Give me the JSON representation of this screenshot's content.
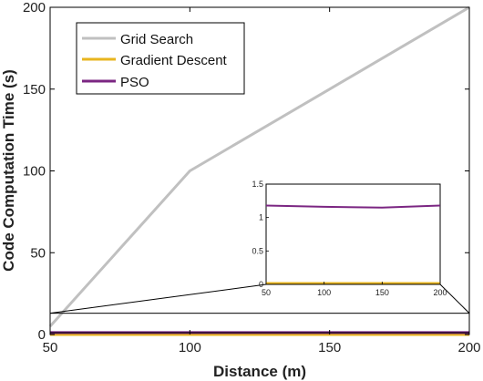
{
  "chart_data": {
    "type": "line",
    "xlabel": "Distance (m)",
    "ylabel": "Code Computation Time (s)",
    "xlim": [
      50,
      200
    ],
    "ylim": [
      0,
      200
    ],
    "x_ticks": [
      "50",
      "100",
      "150",
      "200"
    ],
    "y_ticks": [
      "0",
      "50",
      "100",
      "150",
      "200"
    ],
    "legend_position": "top-left",
    "series": [
      {
        "name": "Grid Search",
        "color": "#c0c0c0",
        "x": [
          50,
          100,
          150,
          200
        ],
        "y": [
          5,
          100,
          150,
          200
        ]
      },
      {
        "name": "Gradient Descent",
        "color": "#e8b51f",
        "x": [
          50,
          100,
          150,
          200
        ],
        "y": [
          0.02,
          0.02,
          0.02,
          0.02
        ]
      },
      {
        "name": "PSO",
        "color": "#7b2682",
        "x": [
          50,
          100,
          150,
          200
        ],
        "y": [
          1.18,
          1.16,
          1.15,
          1.18
        ]
      }
    ],
    "inset": {
      "xlim": [
        50,
        200
      ],
      "ylim": [
        0,
        1.5
      ],
      "x_ticks": [
        "50",
        "100",
        "150",
        "200"
      ],
      "y_ticks": [
        "0",
        "0.5",
        "1",
        "1.5"
      ],
      "zoom_ylim": [
        0,
        13
      ]
    }
  }
}
